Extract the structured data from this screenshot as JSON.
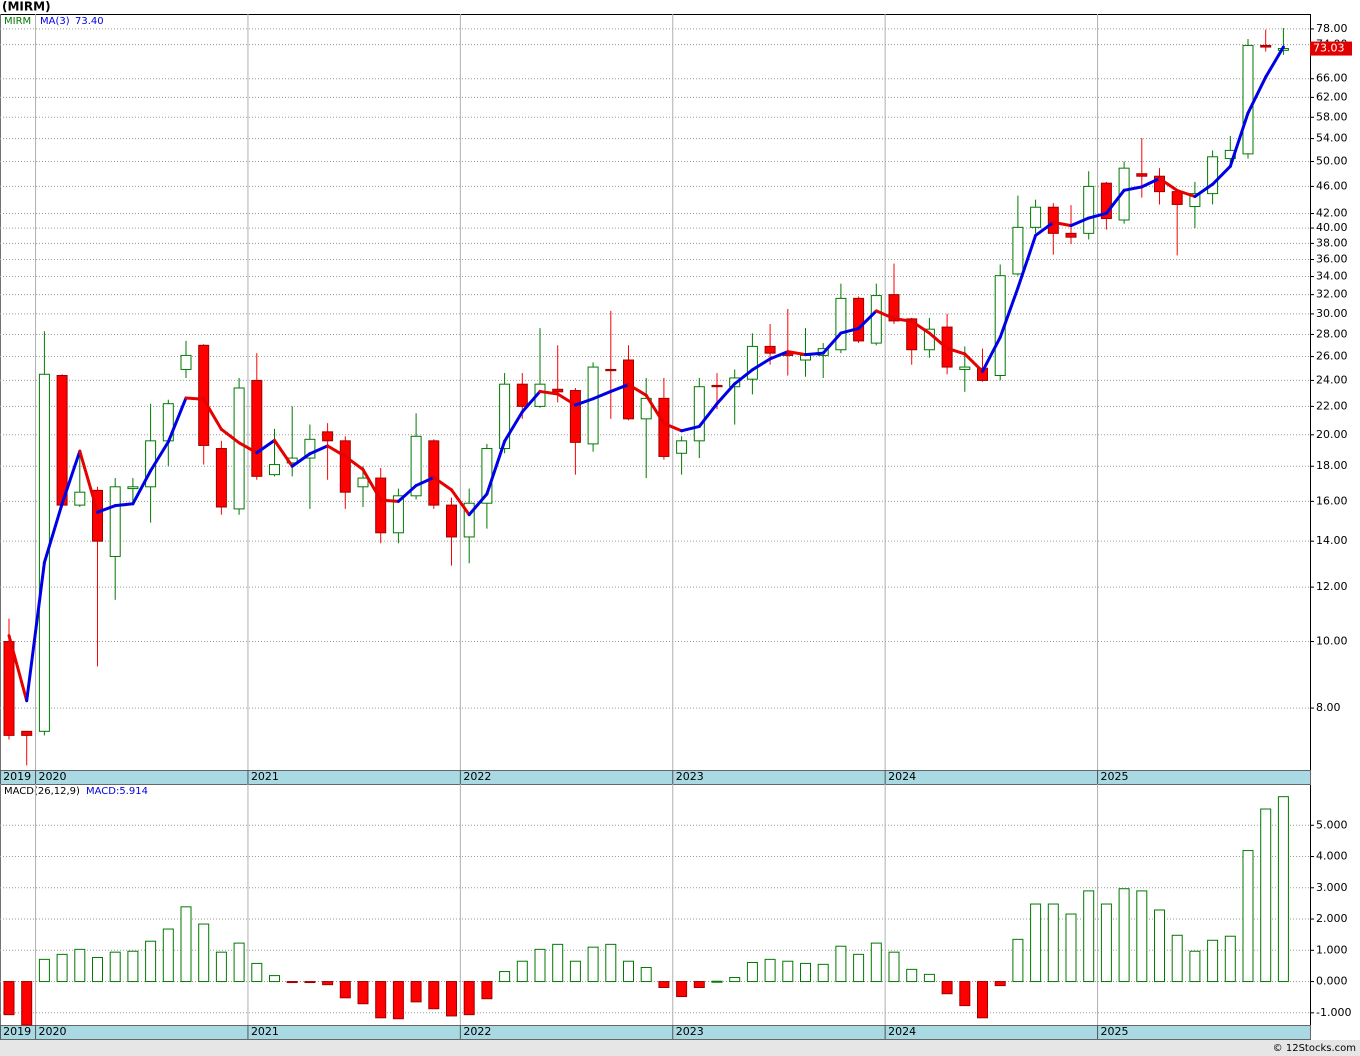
{
  "chart_data": {
    "type": "candlestick",
    "title": "(MIRM)",
    "symbol": "MIRM",
    "log_scale": true,
    "grid": true,
    "colors": {
      "up": "#007a00",
      "down": "#ff0000",
      "ma_up": "#0000e6",
      "ma_down": "#e60000",
      "last": "#e00000"
    },
    "open": [
      10,
      7.4,
      7.4,
      24.4,
      15.8,
      16.6,
      13.3,
      16.7,
      16.8,
      19.6,
      24.9,
      27,
      19.1,
      15.6,
      24,
      17.5,
      18.2,
      18.5,
      20.2,
      19.6,
      16.8,
      17.3,
      14.4,
      16.3,
      19.6,
      15.8,
      14.2,
      15.9,
      19.1,
      23.7,
      22,
      23.3,
      23.2,
      19.4,
      24.9,
      25.7,
      21.1,
      22.6,
      18.8,
      19.6,
      23.6,
      23.5,
      24.1,
      26.9,
      26.3,
      25.7,
      26.1,
      26.6,
      31.6,
      27.2,
      32,
      29.5,
      26.6,
      28.7,
      24.9,
      25,
      24.4,
      34.3,
      40.1,
      42.9,
      39.3,
      39.3,
      46.5,
      41.1,
      48,
      47.6,
      45.2,
      43,
      44.9,
      50.5,
      51.3,
      73.8,
      72.6
    ],
    "high": [
      10.8,
      7.4,
      28.3,
      24.5,
      19,
      16.8,
      17.3,
      17.3,
      22.2,
      22.5,
      27.4,
      27.1,
      19.6,
      24.2,
      26.3,
      20.4,
      22,
      20.7,
      20.8,
      19.9,
      18,
      17.9,
      16.7,
      21.5,
      19.7,
      16.2,
      16.7,
      19.4,
      24.6,
      24.6,
      28.6,
      27,
      23.4,
      25.5,
      30.3,
      27,
      24.2,
      24.2,
      19.9,
      24.2,
      24.6,
      24.9,
      28.1,
      29,
      30.5,
      28.6,
      27.2,
      33.2,
      31.8,
      33.2,
      35.5,
      29.6,
      29.6,
      30,
      26.9,
      26.7,
      35.4,
      44.6,
      44,
      43.5,
      43.2,
      48.4,
      46.7,
      50,
      54.1,
      48.9,
      45.4,
      46.7,
      51.9,
      54.5,
      75.4,
      77.8,
      78.2
    ],
    "low": [
      7.2,
      6.6,
      7.3,
      15.7,
      15.7,
      9.2,
      11.5,
      15.9,
      14.9,
      18,
      24.2,
      18.1,
      15.3,
      15.3,
      17.2,
      17.4,
      17.4,
      15.6,
      17.2,
      15.6,
      15.7,
      13.9,
      13.9,
      16.1,
      15.6,
      12.9,
      13,
      14.6,
      18.8,
      21.1,
      21.9,
      22.3,
      17.5,
      18.9,
      21.1,
      21,
      17.3,
      18.4,
      17.5,
      18.5,
      21.8,
      20.7,
      22.9,
      25.3,
      24.4,
      24.3,
      24.2,
      26.3,
      27.2,
      27,
      29,
      25.3,
      25.9,
      24.5,
      23.1,
      23.9,
      24,
      34.1,
      39.3,
      36.6,
      37.9,
      38.5,
      39.8,
      40.6,
      44.3,
      43.3,
      36.5,
      40,
      43.3,
      49.7,
      50.5,
      72.3,
      71.5
    ],
    "close": [
      7.3,
      7.3,
      24.5,
      15.8,
      16.5,
      14,
      16.8,
      16.8,
      19.6,
      22.2,
      26.1,
      19.3,
      15.7,
      23.4,
      17.4,
      18.1,
      18.5,
      19.7,
      19.6,
      16.5,
      17.3,
      14.4,
      16.3,
      19.9,
      15.8,
      14.2,
      15.9,
      19.1,
      23.7,
      22,
      23.7,
      23.1,
      19.5,
      25.1,
      24.8,
      21.1,
      22.6,
      18.6,
      19.6,
      23.5,
      23.5,
      24.2,
      26.9,
      26.3,
      26.1,
      26.1,
      26.7,
      31.6,
      27.4,
      31.9,
      29.3,
      26.6,
      28.5,
      25.1,
      25.1,
      24,
      34.1,
      40.1,
      42.9,
      39.3,
      38.8,
      46,
      41.3,
      48.9,
      47.6,
      45.2,
      43.3,
      44.9,
      50.8,
      51.9,
      73.8,
      73.4,
      73.03
    ],
    "last_price_label": "73.03",
    "ma": {
      "name": "MA(3)",
      "last_label": "73.40",
      "values": [
        10.2,
        8.2,
        13.03,
        15.87,
        18.93,
        15.43,
        15.77,
        15.87,
        17.73,
        19.53,
        22.63,
        22.53,
        20.37,
        19.47,
        18.83,
        19.63,
        18,
        18.77,
        19.27,
        18.6,
        17.8,
        16.07,
        16,
        16.87,
        17.33,
        16.63,
        15.3,
        16.4,
        19.57,
        21.6,
        23.13,
        22.93,
        22.1,
        22.57,
        23.13,
        23.67,
        22.83,
        20.77,
        20.27,
        20.57,
        22.2,
        23.73,
        24.87,
        25.8,
        26.43,
        26.17,
        26.3,
        28.13,
        28.57,
        30.3,
        29.53,
        29.27,
        28.13,
        26.73,
        26.23,
        24.73,
        27.73,
        32.73,
        39.03,
        40.77,
        40.33,
        41.37,
        42.03,
        45.4,
        45.93,
        47.23,
        45.37,
        44.47,
        46.33,
        49.2,
        58.83,
        66.37,
        73.4
      ]
    },
    "ylim": [
      6.5,
      82
    ],
    "yticks": [
      {
        "value": 8,
        "label": "8.00"
      },
      {
        "value": 10,
        "label": "10.00"
      },
      {
        "value": 12,
        "label": "12.00"
      },
      {
        "value": 14,
        "label": "14.00"
      },
      {
        "value": 16,
        "label": "16.00"
      },
      {
        "value": 18,
        "label": "18.00"
      },
      {
        "value": 20,
        "label": "20.00"
      },
      {
        "value": 22,
        "label": "22.00"
      },
      {
        "value": 24,
        "label": "24.00"
      },
      {
        "value": 26,
        "label": "26.00"
      },
      {
        "value": 28,
        "label": "28.00"
      },
      {
        "value": 30,
        "label": "30.00"
      },
      {
        "value": 32,
        "label": "32.00"
      },
      {
        "value": 34,
        "label": "34.00"
      },
      {
        "value": 36,
        "label": "36.00"
      },
      {
        "value": 38,
        "label": "38.00"
      },
      {
        "value": 40,
        "label": "40.00"
      },
      {
        "value": 42,
        "label": "42.00"
      },
      {
        "value": 46,
        "label": "46.00"
      },
      {
        "value": 50,
        "label": "50.00"
      },
      {
        "value": 54,
        "label": "54.00"
      },
      {
        "value": 58,
        "label": "58.00"
      },
      {
        "value": 62,
        "label": "62.00"
      },
      {
        "value": 66,
        "label": "66.00"
      },
      {
        "value": 74,
        "label": "74.00"
      },
      {
        "value": 78,
        "label": "78.00"
      }
    ],
    "xticks": [
      {
        "value": 0,
        "label": "2019"
      },
      {
        "value": 2,
        "label": "2020"
      },
      {
        "value": 14,
        "label": "2021"
      },
      {
        "value": 26,
        "label": "2022"
      },
      {
        "value": 38,
        "label": "2023"
      },
      {
        "value": 50,
        "label": "2024"
      },
      {
        "value": 62,
        "label": "2025"
      }
    ],
    "macd": {
      "type": "bar",
      "name": "MACD(26,12,9)",
      "label": "MACD:5.914",
      "values": [
        -1.06,
        -1.4,
        0.71,
        0.87,
        1.03,
        0.77,
        0.94,
        0.97,
        1.29,
        1.68,
        2.39,
        1.84,
        0.94,
        1.23,
        0.58,
        0.19,
        -0.03,
        -0.03,
        -0.1,
        -0.52,
        -0.71,
        -1.16,
        -1.19,
        -0.65,
        -0.87,
        -1.1,
        -1.06,
        -0.55,
        0.32,
        0.65,
        1.03,
        1.19,
        0.65,
        1.1,
        1.19,
        0.65,
        0.45,
        -0.19,
        -0.48,
        -0.19,
        0.01,
        0.13,
        0.61,
        0.71,
        0.65,
        0.58,
        0.55,
        1.13,
        0.87,
        1.23,
        0.94,
        0.39,
        0.23,
        -0.39,
        -0.77,
        -1.16,
        -0.13,
        1.35,
        2.48,
        2.48,
        2.16,
        2.9,
        2.48,
        2.97,
        2.9,
        2.29,
        1.48,
        0.97,
        1.32,
        1.45,
        4.19,
        5.52,
        5.914
      ],
      "ylim": [
        -1.39,
        6.32
      ],
      "yticks": [
        {
          "value": -1,
          "label": "-1.000"
        },
        {
          "value": 0,
          "label": "0.000"
        },
        {
          "value": 1,
          "label": "1.000"
        },
        {
          "value": 2,
          "label": "2.000"
        },
        {
          "value": 3,
          "label": "3.000"
        },
        {
          "value": 4,
          "label": "4.000"
        },
        {
          "value": 5,
          "label": "5.000"
        }
      ]
    },
    "footer": "© 12Stocks.com"
  }
}
